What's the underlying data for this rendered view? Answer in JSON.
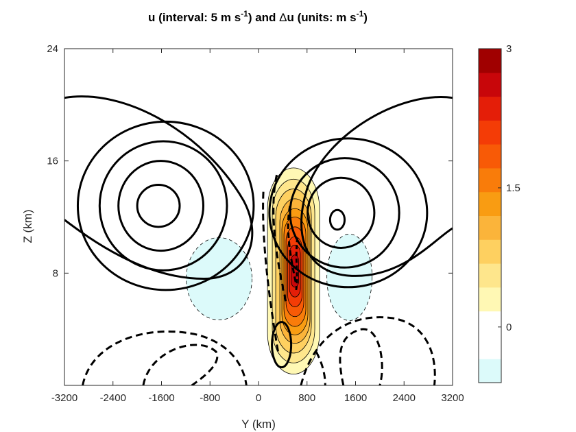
{
  "chart_data": {
    "type": "contour",
    "title": {
      "p1": "u (interval: 5 m s",
      "p1_sup": "-1",
      "p2": ") and ",
      "p2_symbol": "Δ",
      "p3": "u (units: m s",
      "p3_sup": "-1",
      "p4": ")"
    },
    "xlabel": "Y (km)",
    "ylabel": "Z (km)",
    "xlim": [
      -3200,
      3200
    ],
    "ylim": [
      0,
      24
    ],
    "xticks": [
      "-3200",
      "-2400",
      "-1600",
      "-800",
      "0",
      "800",
      "1600",
      "2400",
      "3200"
    ],
    "yticks": [
      "24",
      "16",
      "8"
    ],
    "yticks_values": [
      24,
      16,
      8
    ],
    "colorbar": {
      "min": -0.6,
      "max": 3,
      "tick_labels": [
        "3",
        "1.5",
        "0"
      ],
      "tick_values": [
        3,
        1.5,
        0
      ],
      "colors": [
        "#dcfafa",
        "#ffffff",
        "#ffffff",
        "#fff8b4",
        "#fee68c",
        "#fed060",
        "#fbb43a",
        "#f99c12",
        "#f97c0a",
        "#f85a06",
        "#f43c06",
        "#e41e08",
        "#c8060a",
        "#a00000"
      ]
    },
    "u_contours": {
      "interval": 5,
      "positive_style": "solid",
      "negative_style": "dashed",
      "left_centers": [
        {
          "y": -1650,
          "z": 12.8,
          "rings": [
            [
              350,
              1.5
            ],
            [
              700,
              3.2
            ],
            [
              1050,
              4.6
            ],
            [
              1450,
              6.0
            ]
          ]
        }
      ],
      "right_centers": [
        {
          "y": 1300,
          "z": 11.8,
          "rings": [
            [
              120,
              0.7
            ],
            [
              550,
              2.5
            ],
            [
              900,
              3.9
            ],
            [
              1300,
              5.3
            ]
          ]
        }
      ],
      "outer_jet_top_z": 20.5
    },
    "delta_u": {
      "max": 3,
      "center_y": 600,
      "center_z": 8.5
    }
  }
}
